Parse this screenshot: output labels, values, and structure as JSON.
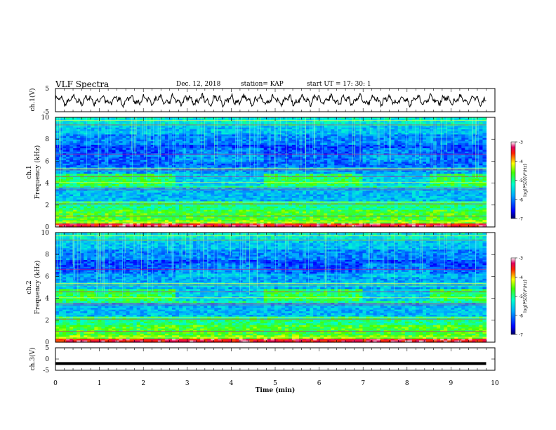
{
  "header": {
    "title": "VLF Spectra",
    "date": "Dec. 12, 2018",
    "station": "station= KAP",
    "start": "start  UT  =   17: 30: 1"
  },
  "chart_data": [
    {
      "type": "line",
      "panel": "ch1-waveform",
      "ylabel": "ch.1(V)",
      "ylim": [
        -5,
        5
      ],
      "yticks": [
        "5",
        "-5"
      ],
      "xlim": [
        0,
        10
      ],
      "description_values": {
        "baseline_V": 0.0,
        "swing_V": 2.5
      }
    },
    {
      "type": "heatmap",
      "panel": "ch1-spectrogram",
      "ylabel": "ch.1\nFrequency (kHz)",
      "ylabel_line1": "ch.1",
      "ylabel_line2": "Frequency (kHz)",
      "ylim": [
        0,
        10
      ],
      "yticks": [
        "0",
        "2",
        "4",
        "6",
        "8",
        "10"
      ],
      "xlim": [
        0,
        10
      ],
      "data_end_min": 9.8,
      "colorbar": {
        "label": "log(PSD)(V²/Hz)",
        "range": [
          -7,
          -3
        ],
        "ticks": [
          "-3",
          "-4",
          "-5",
          "-6",
          "-7"
        ]
      }
    },
    {
      "type": "heatmap",
      "panel": "ch2-spectrogram",
      "ylabel_line1": "ch.2",
      "ylabel_line2": "Frequency (kHz)",
      "ylim": [
        0,
        10
      ],
      "yticks": [
        "0",
        "2",
        "4",
        "6",
        "8",
        "10"
      ],
      "xlim": [
        0,
        10
      ],
      "data_end_min": 9.8,
      "colorbar": {
        "label": "log(PSD)(V²/Hz)",
        "range": [
          -7,
          -3
        ],
        "ticks": [
          "-3",
          "-4",
          "-5",
          "-6",
          "-7"
        ]
      }
    },
    {
      "type": "line",
      "panel": "ch3-waveform",
      "ylabel": "ch.3(V)",
      "ylim": [
        -5,
        5
      ],
      "yticks": [
        "5",
        "0",
        "-5"
      ],
      "xlim": [
        0,
        10
      ],
      "xlabel": "Time  (min)",
      "xticks": [
        "0",
        "1",
        "2",
        "3",
        "4",
        "5",
        "6",
        "7",
        "8",
        "9",
        "10"
      ],
      "constant_value_V": -2.0,
      "data_end_min": 9.8
    }
  ]
}
